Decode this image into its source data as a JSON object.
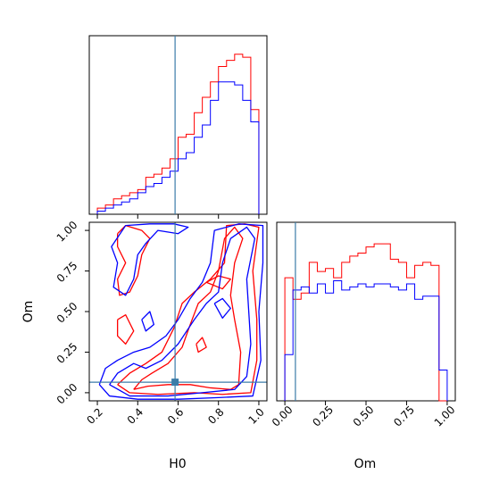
{
  "chart_data": {
    "type": "corner",
    "params": [
      "H0",
      "Om"
    ],
    "truth": {
      "H0": 0.585,
      "Om": 0.065
    },
    "colors": {
      "series_a": "#ff0000",
      "series_b": "#0000ff",
      "truth": "#3b7ca8"
    },
    "panels": [
      {
        "id": "hist-H0",
        "type": "histogram",
        "xlim": [
          0.16,
          1.04
        ],
        "bin_edges": [
          0.2,
          0.24,
          0.28,
          0.32,
          0.36,
          0.4,
          0.44,
          0.48,
          0.52,
          0.56,
          0.6,
          0.64,
          0.68,
          0.72,
          0.76,
          0.8,
          0.84,
          0.88,
          0.92,
          0.96,
          1.0
        ],
        "series": [
          {
            "color": "red",
            "values": [
              2,
              3,
              5,
              6,
              7,
              8,
              12,
              13,
              15,
              18,
              25,
              26,
              33,
              38,
              43,
              48,
              50,
              52,
              51,
              34
            ]
          },
          {
            "color": "blue",
            "values": [
              1,
              2,
              3,
              4,
              5,
              7,
              9,
              10,
              12,
              14,
              18,
              20,
              25,
              29,
              37,
              43,
              43,
              42,
              37,
              30
            ]
          }
        ]
      },
      {
        "id": "contour-H0-Om",
        "type": "contour",
        "xlabel": "H0",
        "ylabel": "Om",
        "xlim": [
          0.16,
          1.04
        ],
        "ylim": [
          -0.05,
          1.05
        ],
        "xticks": [
          "0.2",
          "0.4",
          "0.6",
          "0.8",
          "1.0"
        ],
        "yticks": [
          "0.00",
          "0.25",
          "0.50",
          "0.75",
          "1.00"
        ],
        "xtick_values": [
          0.2,
          0.4,
          0.6,
          0.8,
          1.0
        ],
        "ytick_values": [
          0.0,
          0.25,
          0.5,
          0.75,
          1.0
        ],
        "series": [
          {
            "color": "red",
            "contours": [
              [
                [
                  0.38,
                  0.02
                ],
                [
                  0.45,
                  0.04
                ],
                [
                  0.55,
                  0.05
                ],
                [
                  0.66,
                  0.05
                ],
                [
                  0.76,
                  0.03
                ],
                [
                  0.86,
                  0.02
                ],
                [
                  0.9,
                  0.05
                ],
                [
                  0.91,
                  0.25
                ],
                [
                  0.88,
                  0.45
                ],
                [
                  0.86,
                  0.6
                ],
                [
                  0.88,
                  0.8
                ],
                [
                  0.92,
                  0.95
                ],
                [
                  0.88,
                  1.02
                ],
                [
                  0.83,
                  0.95
                ],
                [
                  0.8,
                  0.75
                ],
                [
                  0.76,
                  0.62
                ],
                [
                  0.7,
                  0.55
                ],
                [
                  0.66,
                  0.42
                ],
                [
                  0.62,
                  0.28
                ],
                [
                  0.55,
                  0.18
                ],
                [
                  0.47,
                  0.12
                ],
                [
                  0.42,
                  0.08
                ],
                [
                  0.38,
                  0.02
                ]
              ],
              [
                [
                  0.3,
                  0.05
                ],
                [
                  0.36,
                  0.0
                ],
                [
                  0.5,
                  -0.01
                ],
                [
                  0.68,
                  0.0
                ],
                [
                  0.82,
                  -0.01
                ],
                [
                  0.96,
                  0.0
                ],
                [
                  0.99,
                  0.2
                ],
                [
                  0.99,
                  0.45
                ],
                [
                  0.97,
                  0.75
                ],
                [
                  1.0,
                  1.02
                ],
                [
                  0.93,
                  1.04
                ],
                [
                  0.84,
                  1.03
                ],
                [
                  0.83,
                  0.8
                ],
                [
                  0.76,
                  0.7
                ],
                [
                  0.68,
                  0.62
                ],
                [
                  0.62,
                  0.55
                ],
                [
                  0.58,
                  0.4
                ],
                [
                  0.52,
                  0.25
                ],
                [
                  0.44,
                  0.18
                ],
                [
                  0.36,
                  0.12
                ],
                [
                  0.3,
                  0.05
                ]
              ],
              [
                [
                  0.3,
                  0.98
                ],
                [
                  0.34,
                  1.03
                ],
                [
                  0.42,
                  1.0
                ],
                [
                  0.46,
                  0.95
                ],
                [
                  0.42,
                  0.85
                ],
                [
                  0.4,
                  0.72
                ],
                [
                  0.36,
                  0.62
                ],
                [
                  0.31,
                  0.6
                ],
                [
                  0.3,
                  0.7
                ],
                [
                  0.34,
                  0.8
                ],
                [
                  0.3,
                  0.9
                ],
                [
                  0.3,
                  0.98
                ]
              ],
              [
                [
                  0.3,
                  0.45
                ],
                [
                  0.34,
                  0.48
                ],
                [
                  0.38,
                  0.38
                ],
                [
                  0.34,
                  0.3
                ],
                [
                  0.3,
                  0.35
                ],
                [
                  0.3,
                  0.45
                ]
              ],
              [
                [
                  0.74,
                  0.68
                ],
                [
                  0.8,
                  0.72
                ],
                [
                  0.86,
                  0.7
                ],
                [
                  0.82,
                  0.64
                ],
                [
                  0.74,
                  0.68
                ]
              ],
              [
                [
                  0.69,
                  0.3
                ],
                [
                  0.72,
                  0.34
                ],
                [
                  0.74,
                  0.28
                ],
                [
                  0.7,
                  0.25
                ],
                [
                  0.69,
                  0.3
                ]
              ]
            ]
          },
          {
            "color": "blue",
            "contours": [
              [
                [
                  0.26,
                  0.05
                ],
                [
                  0.36,
                  -0.02
                ],
                [
                  0.55,
                  -0.02
                ],
                [
                  0.72,
                  0.0
                ],
                [
                  0.88,
                  0.02
                ],
                [
                  0.94,
                  0.1
                ],
                [
                  0.96,
                  0.3
                ],
                [
                  0.95,
                  0.5
                ],
                [
                  0.94,
                  0.7
                ],
                [
                  0.98,
                  0.95
                ],
                [
                  0.94,
                  1.02
                ],
                [
                  0.86,
                  0.95
                ],
                [
                  0.82,
                  0.8
                ],
                [
                  0.8,
                  0.62
                ],
                [
                  0.74,
                  0.55
                ],
                [
                  0.68,
                  0.45
                ],
                [
                  0.6,
                  0.3
                ],
                [
                  0.52,
                  0.2
                ],
                [
                  0.44,
                  0.15
                ],
                [
                  0.38,
                  0.18
                ],
                [
                  0.3,
                  0.12
                ],
                [
                  0.26,
                  0.05
                ]
              ],
              [
                [
                  0.21,
                  0.05
                ],
                [
                  0.26,
                  -0.02
                ],
                [
                  0.4,
                  -0.04
                ],
                [
                  0.6,
                  -0.04
                ],
                [
                  0.8,
                  -0.03
                ],
                [
                  0.97,
                  -0.02
                ],
                [
                  1.01,
                  0.2
                ],
                [
                  1.0,
                  0.5
                ],
                [
                  1.02,
                  0.8
                ],
                [
                  1.02,
                  1.03
                ],
                [
                  0.9,
                  1.04
                ],
                [
                  0.78,
                  1.0
                ],
                [
                  0.76,
                  0.8
                ],
                [
                  0.72,
                  0.68
                ],
                [
                  0.66,
                  0.58
                ],
                [
                  0.6,
                  0.45
                ],
                [
                  0.54,
                  0.35
                ],
                [
                  0.46,
                  0.28
                ],
                [
                  0.38,
                  0.25
                ],
                [
                  0.3,
                  0.2
                ],
                [
                  0.24,
                  0.15
                ],
                [
                  0.21,
                  0.05
                ]
              ],
              [
                [
                  0.34,
                  1.03
                ],
                [
                  0.46,
                  1.04
                ],
                [
                  0.58,
                  1.04
                ],
                [
                  0.65,
                  1.02
                ],
                [
                  0.6,
                  0.98
                ],
                [
                  0.5,
                  1.0
                ],
                [
                  0.44,
                  0.92
                ],
                [
                  0.4,
                  0.85
                ],
                [
                  0.38,
                  0.7
                ],
                [
                  0.34,
                  0.6
                ],
                [
                  0.28,
                  0.65
                ],
                [
                  0.3,
                  0.8
                ],
                [
                  0.27,
                  0.9
                ],
                [
                  0.34,
                  1.03
                ]
              ],
              [
                [
                  0.78,
                  0.55
                ],
                [
                  0.82,
                  0.58
                ],
                [
                  0.86,
                  0.52
                ],
                [
                  0.82,
                  0.46
                ],
                [
                  0.78,
                  0.55
                ]
              ],
              [
                [
                  0.42,
                  0.45
                ],
                [
                  0.46,
                  0.5
                ],
                [
                  0.48,
                  0.42
                ],
                [
                  0.44,
                  0.38
                ],
                [
                  0.42,
                  0.45
                ]
              ]
            ]
          }
        ]
      },
      {
        "id": "hist-Om",
        "type": "histogram",
        "xlabel": "Om",
        "xlim": [
          -0.05,
          1.05
        ],
        "xticks": [
          "0.00",
          "0.25",
          "0.50",
          "0.75",
          "1.00"
        ],
        "xtick_values": [
          0.0,
          0.25,
          0.5,
          0.75,
          1.0
        ],
        "ymax": 58,
        "bin_edges": [
          0.0,
          0.05,
          0.1,
          0.15,
          0.2,
          0.25,
          0.3,
          0.35,
          0.4,
          0.45,
          0.5,
          0.55,
          0.6,
          0.65,
          0.7,
          0.75,
          0.8,
          0.85,
          0.9,
          0.95,
          1.0
        ],
        "series": [
          {
            "color": "red",
            "values": [
              40,
              33,
              35,
              45,
              42,
              43,
              40,
              45,
              47,
              48,
              50,
              51,
              51,
              46,
              45,
              40,
              44,
              45,
              44,
              0
            ]
          },
          {
            "color": "blue",
            "values": [
              15,
              36,
              37,
              35,
              38,
              35,
              39,
              36,
              37,
              38,
              37,
              38,
              38,
              37,
              36,
              38,
              33,
              34,
              34,
              10
            ]
          }
        ]
      }
    ]
  }
}
